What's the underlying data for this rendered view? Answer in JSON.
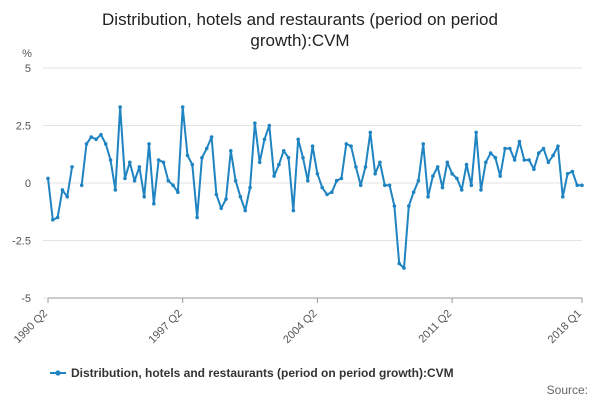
{
  "chart_data": {
    "type": "line",
    "title_line1": "Distribution, hotels and restaurants (period on period",
    "title_line2": "growth):CVM",
    "ylabel": "%",
    "ylim": [
      -5,
      5
    ],
    "yticks": [
      5,
      2.5,
      0,
      -2.5,
      -5
    ],
    "ytick_labels": [
      "5",
      "2.5",
      "0",
      "-2.5",
      "-5"
    ],
    "xticks": [
      {
        "label": "1990 Q2",
        "index": 0
      },
      {
        "label": "1997 Q2",
        "index": 28
      },
      {
        "label": "2004 Q2",
        "index": 56
      },
      {
        "label": "2011 Q2",
        "index": 84
      },
      {
        "label": "2018 Q1",
        "index": 111
      }
    ],
    "series": [
      {
        "name": "Distribution, hotels and restaurants (period on period growth):CVM",
        "color": "#1f84c1",
        "values": [
          0.2,
          -1.6,
          -1.5,
          -0.3,
          -0.6,
          0.7,
          null,
          -0.1,
          1.7,
          2.0,
          1.9,
          2.1,
          1.7,
          1.0,
          -0.3,
          3.3,
          0.2,
          0.9,
          0.1,
          0.7,
          -0.6,
          1.7,
          -0.9,
          1.0,
          0.9,
          0.1,
          -0.1,
          -0.4,
          3.3,
          1.2,
          0.8,
          -1.5,
          1.1,
          1.5,
          2.0,
          -0.5,
          -1.1,
          -0.7,
          1.4,
          0.1,
          -0.6,
          -1.2,
          -0.2,
          2.6,
          0.9,
          1.9,
          2.5,
          0.3,
          0.8,
          1.4,
          1.1,
          -1.2,
          1.9,
          1.1,
          0.1,
          1.6,
          0.4,
          -0.2,
          -0.5,
          -0.4,
          0.1,
          0.2,
          1.7,
          1.6,
          0.7,
          -0.1,
          0.7,
          2.2,
          0.4,
          0.9,
          -0.1,
          -0.1,
          -1.0,
          -3.5,
          -3.7,
          -1.0,
          -0.4,
          0.1,
          1.7,
          -0.6,
          0.3,
          0.7,
          -0.2,
          0.9,
          0.4,
          0.2,
          -0.3,
          0.8,
          -0.1,
          2.2,
          -0.3,
          0.9,
          1.3,
          1.1,
          0.3,
          1.5,
          1.5,
          1.0,
          1.8,
          1.0,
          1.0,
          0.6,
          1.3,
          1.5,
          0.9,
          1.2,
          1.6,
          -0.6,
          0.4,
          0.5,
          -0.1,
          -0.1
        ]
      }
    ],
    "legend_position": "bottom-left",
    "source_label": "Source:"
  }
}
